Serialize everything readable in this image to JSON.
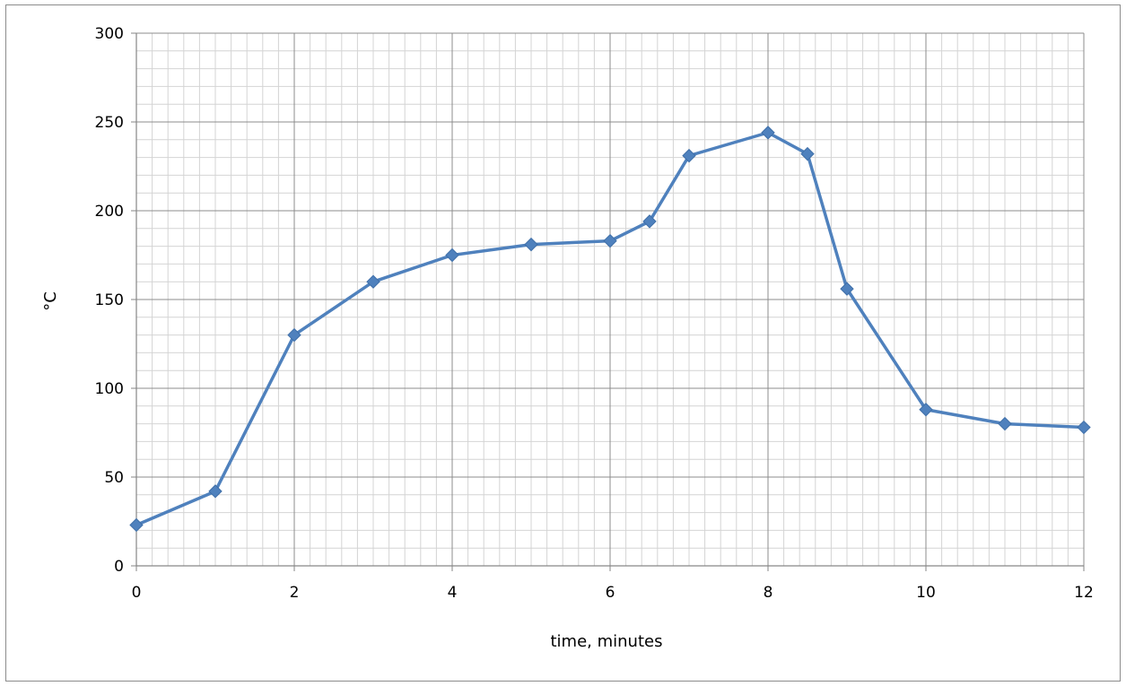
{
  "chart_data": {
    "type": "line",
    "xlabel": "time, minutes",
    "ylabel": "°C",
    "xlim": [
      0,
      12
    ],
    "ylim": [
      0,
      300
    ],
    "x_ticks": [
      0,
      2,
      4,
      6,
      8,
      10,
      12
    ],
    "y_ticks": [
      0,
      50,
      100,
      150,
      200,
      250,
      300
    ],
    "grid": true,
    "legend": "none",
    "series": [
      {
        "color": "#4f81bd",
        "marker": "diamond",
        "x": [
          0,
          1,
          2,
          3,
          4,
          5,
          6,
          6.5,
          7,
          8,
          8.5,
          9,
          10,
          11,
          12
        ],
        "y": [
          23,
          42,
          130,
          160,
          175,
          181,
          183,
          194,
          231,
          244,
          232,
          156,
          88,
          80,
          78
        ]
      }
    ]
  }
}
